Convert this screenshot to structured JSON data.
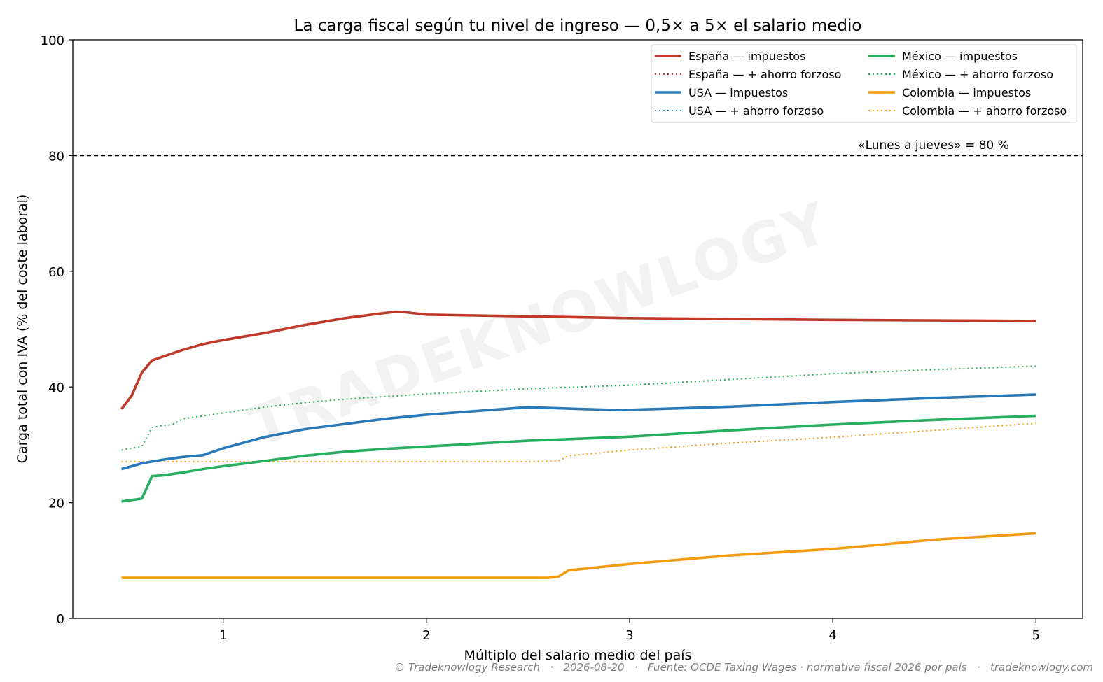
{
  "chart_data": {
    "type": "line",
    "title": "La carga fiscal según tu nivel de ingreso — 0,5× a 5× el salario medio",
    "xlabel": "Múltiplo del salario medio del país",
    "ylabel": "Carga total con IVA (% del coste laboral)",
    "xlim": [
      0.26,
      5.23
    ],
    "ylim": [
      0,
      100
    ],
    "xticks": [
      1,
      2,
      3,
      4,
      5
    ],
    "yticks": [
      0,
      20,
      40,
      60,
      80,
      100
    ],
    "grid": false,
    "legend_placement": "top-right",
    "watermark": "TRADEKNOWLOGY",
    "reference_line": {
      "y": 80,
      "label": "«Lunes a jueves» = 80 %",
      "color": "#000000",
      "style": "dashed"
    },
    "series": [
      {
        "name": "España — impuestos",
        "color": "#c0392b",
        "style": "solid",
        "points": [
          [
            0.5,
            36.2
          ],
          [
            0.55,
            38.5
          ],
          [
            0.6,
            42.5
          ],
          [
            0.65,
            44.6
          ],
          [
            0.7,
            45.2
          ],
          [
            0.8,
            46.4
          ],
          [
            0.9,
            47.4
          ],
          [
            1.0,
            48.1
          ],
          [
            1.2,
            49.3
          ],
          [
            1.4,
            50.7
          ],
          [
            1.6,
            51.9
          ],
          [
            1.8,
            52.8
          ],
          [
            1.85,
            53.0
          ],
          [
            1.9,
            52.9
          ],
          [
            2.0,
            52.5
          ],
          [
            2.5,
            52.2
          ],
          [
            3.0,
            51.9
          ],
          [
            4.0,
            51.6
          ],
          [
            5.0,
            51.4
          ]
        ]
      },
      {
        "name": "España — + ahorro forzoso",
        "color": "#c0392b",
        "style": "dotted",
        "points": [
          [
            0.5,
            36.2
          ],
          [
            0.55,
            38.5
          ],
          [
            0.6,
            42.5
          ],
          [
            0.65,
            44.6
          ],
          [
            0.7,
            45.2
          ],
          [
            0.8,
            46.4
          ],
          [
            0.9,
            47.4
          ],
          [
            1.0,
            48.1
          ],
          [
            1.2,
            49.3
          ],
          [
            1.4,
            50.7
          ],
          [
            1.6,
            51.9
          ],
          [
            1.8,
            52.8
          ],
          [
            1.85,
            53.0
          ],
          [
            1.9,
            52.9
          ],
          [
            2.0,
            52.5
          ],
          [
            2.5,
            52.2
          ],
          [
            3.0,
            51.9
          ],
          [
            4.0,
            51.6
          ],
          [
            5.0,
            51.4
          ]
        ]
      },
      {
        "name": "USA — impuestos",
        "color": "#2a7ab9",
        "style": "solid",
        "points": [
          [
            0.5,
            25.8
          ],
          [
            0.6,
            26.8
          ],
          [
            0.7,
            27.4
          ],
          [
            0.8,
            27.9
          ],
          [
            0.9,
            28.2
          ],
          [
            1.0,
            29.4
          ],
          [
            1.2,
            31.3
          ],
          [
            1.4,
            32.7
          ],
          [
            1.6,
            33.6
          ],
          [
            1.8,
            34.5
          ],
          [
            2.0,
            35.2
          ],
          [
            2.5,
            36.5
          ],
          [
            2.75,
            36.2
          ],
          [
            2.95,
            36.0
          ],
          [
            3.5,
            36.6
          ],
          [
            4.0,
            37.4
          ],
          [
            4.5,
            38.1
          ],
          [
            5.0,
            38.7
          ]
        ]
      },
      {
        "name": "USA — + ahorro forzoso",
        "color": "#2a7ab9",
        "style": "dotted",
        "points": [
          [
            0.5,
            25.8
          ],
          [
            0.6,
            26.8
          ],
          [
            0.7,
            27.4
          ],
          [
            0.8,
            27.9
          ],
          [
            0.9,
            28.2
          ],
          [
            1.0,
            29.4
          ],
          [
            1.2,
            31.3
          ],
          [
            1.4,
            32.7
          ],
          [
            1.6,
            33.6
          ],
          [
            1.8,
            34.5
          ],
          [
            2.0,
            35.2
          ],
          [
            2.5,
            36.5
          ],
          [
            2.75,
            36.2
          ],
          [
            2.95,
            36.0
          ],
          [
            3.5,
            36.6
          ],
          [
            4.0,
            37.4
          ],
          [
            4.5,
            38.1
          ],
          [
            5.0,
            38.7
          ]
        ]
      },
      {
        "name": "México — impuestos",
        "color": "#27ae60",
        "style": "solid",
        "points": [
          [
            0.5,
            20.2
          ],
          [
            0.6,
            20.7
          ],
          [
            0.65,
            24.6
          ],
          [
            0.7,
            24.7
          ],
          [
            0.8,
            25.2
          ],
          [
            0.9,
            25.8
          ],
          [
            1.0,
            26.3
          ],
          [
            1.2,
            27.2
          ],
          [
            1.4,
            28.1
          ],
          [
            1.6,
            28.8
          ],
          [
            1.8,
            29.3
          ],
          [
            2.0,
            29.7
          ],
          [
            2.5,
            30.7
          ],
          [
            3.0,
            31.4
          ],
          [
            3.5,
            32.5
          ],
          [
            4.0,
            33.5
          ],
          [
            4.5,
            34.3
          ],
          [
            5.0,
            35.0
          ]
        ]
      },
      {
        "name": "México — + ahorro forzoso",
        "color": "#27ae60",
        "style": "dotted",
        "points": [
          [
            0.5,
            29.1
          ],
          [
            0.6,
            29.7
          ],
          [
            0.65,
            33.0
          ],
          [
            0.7,
            33.3
          ],
          [
            0.75,
            33.5
          ],
          [
            0.8,
            34.5
          ],
          [
            1.0,
            35.5
          ],
          [
            1.2,
            36.5
          ],
          [
            1.4,
            37.3
          ],
          [
            1.6,
            37.9
          ],
          [
            2.0,
            38.8
          ],
          [
            2.5,
            39.7
          ],
          [
            3.0,
            40.3
          ],
          [
            3.5,
            41.3
          ],
          [
            4.0,
            42.3
          ],
          [
            4.5,
            43.0
          ],
          [
            5.0,
            43.6
          ]
        ]
      },
      {
        "name": "Colombia — impuestos",
        "color": "#f39c12",
        "style": "solid",
        "points": [
          [
            0.5,
            7.0
          ],
          [
            1.0,
            7.0
          ],
          [
            2.0,
            7.0
          ],
          [
            2.6,
            7.0
          ],
          [
            2.65,
            7.2
          ],
          [
            2.7,
            8.3
          ],
          [
            3.0,
            9.4
          ],
          [
            3.5,
            10.9
          ],
          [
            4.0,
            12.0
          ],
          [
            4.1,
            12.3
          ],
          [
            4.5,
            13.6
          ],
          [
            5.0,
            14.7
          ]
        ]
      },
      {
        "name": "Colombia — + ahorro forzoso",
        "color": "#f39c12",
        "style": "dotted",
        "points": [
          [
            0.5,
            27.1
          ],
          [
            1.0,
            27.1
          ],
          [
            2.0,
            27.1
          ],
          [
            2.5,
            27.1
          ],
          [
            2.65,
            27.2
          ],
          [
            2.7,
            28.1
          ],
          [
            3.0,
            29.1
          ],
          [
            3.5,
            30.3
          ],
          [
            4.0,
            31.3
          ],
          [
            4.5,
            32.5
          ],
          [
            5.0,
            33.7
          ]
        ]
      }
    ]
  },
  "footer": "© Tradeknowlogy Research   ·   2026-08-20   ·   Fuente: OCDE Taxing Wages · normativa fiscal 2026 por país   ·   tradeknowlogy.com"
}
